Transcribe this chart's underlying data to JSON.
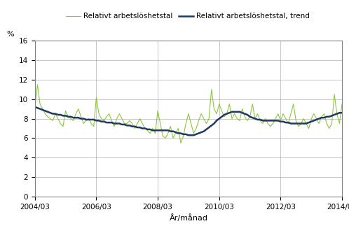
{
  "title": "",
  "xlabel": "År/månad",
  "ylabel": "%",
  "ylim": [
    0,
    16
  ],
  "yticks": [
    0,
    2,
    4,
    6,
    8,
    10,
    12,
    14,
    16
  ],
  "legend_labels": [
    "Relativt arbetslöshetstal",
    "Relativt arbetslöshetstal, trend"
  ],
  "line_color_actual": "#8dc63f",
  "line_color_trend": "#1f3864",
  "background_color": "#ffffff",
  "grid_color": "#b0b0b0",
  "x_tick_labels": [
    "2004/03",
    "2006/03",
    "2008/03",
    "2010/03",
    "2012/03",
    "2014/03"
  ],
  "x_tick_positions": [
    0,
    24,
    48,
    72,
    96,
    120
  ],
  "n_months": 121,
  "actual_values": [
    9.2,
    11.5,
    9.5,
    9.0,
    8.5,
    8.2,
    8.0,
    7.8,
    8.5,
    8.0,
    7.5,
    7.2,
    8.8,
    8.2,
    8.0,
    7.8,
    8.5,
    9.0,
    8.2,
    7.5,
    7.8,
    8.0,
    7.5,
    7.2,
    10.2,
    8.5,
    8.0,
    7.8,
    8.2,
    8.5,
    7.8,
    7.2,
    8.0,
    8.5,
    8.0,
    7.5,
    7.5,
    7.8,
    7.5,
    7.0,
    7.5,
    8.0,
    7.5,
    7.0,
    6.8,
    6.5,
    7.0,
    6.5,
    8.8,
    7.5,
    6.2,
    6.0,
    6.5,
    7.2,
    6.0,
    6.5,
    7.0,
    5.5,
    6.2,
    7.5,
    8.5,
    7.5,
    6.5,
    7.0,
    7.8,
    8.5,
    8.0,
    7.5,
    8.0,
    11.0,
    9.0,
    8.5,
    9.5,
    8.8,
    8.2,
    8.5,
    9.5,
    8.0,
    8.5,
    8.0,
    7.8,
    9.0,
    8.2,
    7.8,
    8.2,
    9.5,
    8.0,
    8.5,
    7.8,
    7.5,
    8.0,
    7.5,
    7.2,
    7.5,
    8.0,
    8.5,
    7.8,
    8.5,
    8.0,
    7.5,
    8.5,
    9.5,
    7.8,
    7.2,
    7.5,
    8.0,
    7.5,
    7.0,
    8.0,
    8.5,
    8.0,
    7.5,
    8.2,
    8.5,
    7.5,
    7.0,
    7.5,
    10.5,
    8.5,
    7.5,
    9.5
  ],
  "trend_values": [
    9.2,
    9.1,
    9.0,
    8.9,
    8.8,
    8.7,
    8.6,
    8.5,
    8.5,
    8.4,
    8.4,
    8.3,
    8.3,
    8.2,
    8.2,
    8.1,
    8.1,
    8.1,
    8.0,
    8.0,
    7.9,
    7.9,
    7.9,
    7.9,
    7.8,
    7.8,
    7.7,
    7.7,
    7.6,
    7.6,
    7.6,
    7.5,
    7.5,
    7.5,
    7.4,
    7.4,
    7.3,
    7.3,
    7.2,
    7.2,
    7.1,
    7.1,
    7.0,
    7.0,
    6.9,
    6.9,
    6.8,
    6.8,
    6.8,
    6.8,
    6.8,
    6.8,
    6.8,
    6.7,
    6.7,
    6.6,
    6.5,
    6.5,
    6.4,
    6.4,
    6.3,
    6.3,
    6.3,
    6.4,
    6.5,
    6.6,
    6.7,
    6.9,
    7.1,
    7.3,
    7.5,
    7.8,
    8.0,
    8.2,
    8.4,
    8.5,
    8.6,
    8.7,
    8.7,
    8.7,
    8.7,
    8.6,
    8.5,
    8.4,
    8.2,
    8.1,
    8.0,
    7.9,
    7.9,
    7.8,
    7.8,
    7.8,
    7.8,
    7.8,
    7.8,
    7.8,
    7.7,
    7.7,
    7.6,
    7.6,
    7.5,
    7.5,
    7.5,
    7.5,
    7.5,
    7.5,
    7.5,
    7.6,
    7.7,
    7.8,
    7.9,
    8.0,
    8.1,
    8.1,
    8.2,
    8.2,
    8.3,
    8.4,
    8.5,
    8.6,
    8.6
  ]
}
